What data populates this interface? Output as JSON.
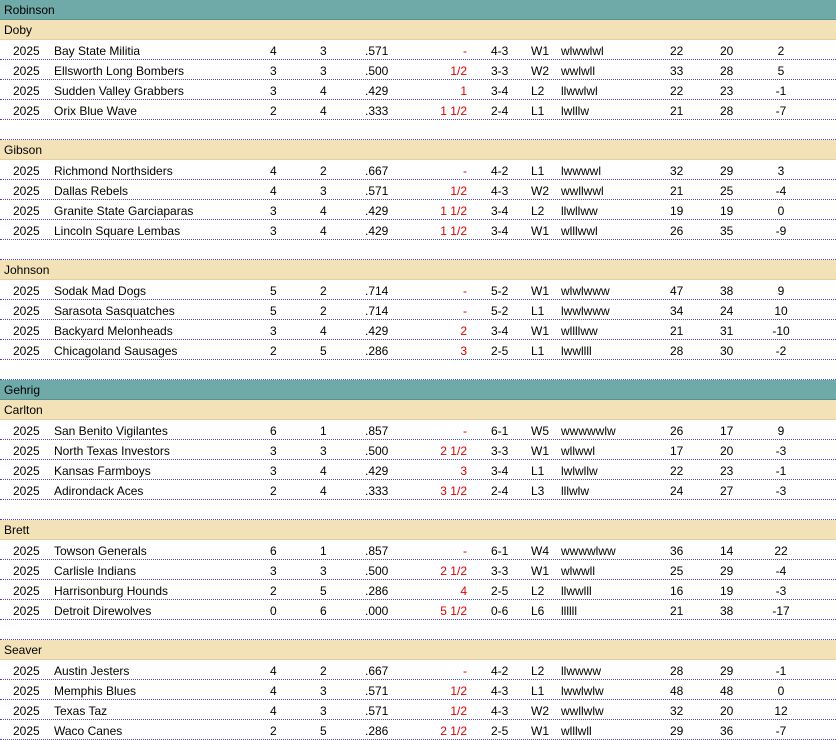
{
  "leagues": [
    {
      "name": "Robinson",
      "divisions": [
        {
          "name": "Doby",
          "teams": [
            {
              "year": "2025",
              "team": "Bay State Militia",
              "w": "4",
              "l": "3",
              "pct": ".571",
              "gb": "-",
              "rec": "4-3",
              "streak": "W1",
              "last": "wlwwlwl",
              "rs": "22",
              "ra": "20",
              "diff": "2"
            },
            {
              "year": "2025",
              "team": "Ellsworth Long Bombers",
              "w": "3",
              "l": "3",
              "pct": ".500",
              "gb": "1/2",
              "rec": "3-3",
              "streak": "W2",
              "last": "wwlwll",
              "rs": "33",
              "ra": "28",
              "diff": "5"
            },
            {
              "year": "2025",
              "team": "Sudden Valley Grabbers",
              "w": "3",
              "l": "4",
              "pct": ".429",
              "gb": "1",
              "rec": "3-4",
              "streak": "L2",
              "last": "llwwlwl",
              "rs": "22",
              "ra": "23",
              "diff": "-1"
            },
            {
              "year": "2025",
              "team": "Orix  Blue Wave",
              "w": "2",
              "l": "4",
              "pct": ".333",
              "gb": "1 1/2",
              "rec": "2-4",
              "streak": "L1",
              "last": "lwlllw",
              "rs": "21",
              "ra": "28",
              "diff": "-7"
            }
          ]
        },
        {
          "name": "Gibson",
          "teams": [
            {
              "year": "2025",
              "team": "Richmond Northsiders",
              "w": "4",
              "l": "2",
              "pct": ".667",
              "gb": "-",
              "rec": "4-2",
              "streak": "L1",
              "last": "lwwwwl",
              "rs": "32",
              "ra": "29",
              "diff": "3"
            },
            {
              "year": "2025",
              "team": "Dallas Rebels",
              "w": "4",
              "l": "3",
              "pct": ".571",
              "gb": "1/2",
              "rec": "4-3",
              "streak": "W2",
              "last": "wwllwwl",
              "rs": "21",
              "ra": "25",
              "diff": "-4"
            },
            {
              "year": "2025",
              "team": "Granite State Garciaparas",
              "w": "3",
              "l": "4",
              "pct": ".429",
              "gb": "1 1/2",
              "rec": "3-4",
              "streak": "L2",
              "last": "llwllww",
              "rs": "19",
              "ra": "19",
              "diff": "0"
            },
            {
              "year": "2025",
              "team": "Lincoln Square Lembas",
              "w": "3",
              "l": "4",
              "pct": ".429",
              "gb": "1 1/2",
              "rec": "3-4",
              "streak": "W1",
              "last": "wlllwwl",
              "rs": "26",
              "ra": "35",
              "diff": "-9"
            }
          ]
        },
        {
          "name": "Johnson",
          "teams": [
            {
              "year": "2025",
              "team": "Sodak Mad Dogs",
              "w": "5",
              "l": "2",
              "pct": ".714",
              "gb": "-",
              "rec": "5-2",
              "streak": "W1",
              "last": "wlwlwww",
              "rs": "47",
              "ra": "38",
              "diff": "9"
            },
            {
              "year": "2025",
              "team": "Sarasota Sasquatches",
              "w": "5",
              "l": "2",
              "pct": ".714",
              "gb": "-",
              "rec": "5-2",
              "streak": "L1",
              "last": "lwwlwww",
              "rs": "34",
              "ra": "24",
              "diff": "10"
            },
            {
              "year": "2025",
              "team": "Backyard Melonheads",
              "w": "3",
              "l": "4",
              "pct": ".429",
              "gb": "2",
              "rec": "3-4",
              "streak": "W1",
              "last": "wllllww",
              "rs": "21",
              "ra": "31",
              "diff": "-10"
            },
            {
              "year": "2025",
              "team": "Chicagoland Sausages",
              "w": "2",
              "l": "5",
              "pct": ".286",
              "gb": "3",
              "rec": "2-5",
              "streak": "L1",
              "last": "lwwllll",
              "rs": "28",
              "ra": "30",
              "diff": "-2"
            }
          ]
        }
      ]
    },
    {
      "name": "Gehrig",
      "divisions": [
        {
          "name": "Carlton",
          "teams": [
            {
              "year": "2025",
              "team": "San Benito Vigilantes",
              "w": "6",
              "l": "1",
              "pct": ".857",
              "gb": "-",
              "rec": "6-1",
              "streak": "W5",
              "last": "wwwwwlw",
              "rs": "26",
              "ra": "17",
              "diff": "9"
            },
            {
              "year": "2025",
              "team": "North Texas Investors",
              "w": "3",
              "l": "3",
              "pct": ".500",
              "gb": "2 1/2",
              "rec": "3-3",
              "streak": "W1",
              "last": "wllwwl",
              "rs": "17",
              "ra": "20",
              "diff": "-3"
            },
            {
              "year": "2025",
              "team": "Kansas Farmboys",
              "w": "3",
              "l": "4",
              "pct": ".429",
              "gb": "3",
              "rec": "3-4",
              "streak": "L1",
              "last": "lwlwllw",
              "rs": "22",
              "ra": "23",
              "diff": "-1"
            },
            {
              "year": "2025",
              "team": "Adirondack Aces",
              "w": "2",
              "l": "4",
              "pct": ".333",
              "gb": "3 1/2",
              "rec": "2-4",
              "streak": "L3",
              "last": "lllwlw",
              "rs": "24",
              "ra": "27",
              "diff": "-3"
            }
          ]
        },
        {
          "name": "Brett",
          "teams": [
            {
              "year": "2025",
              "team": "Towson  Generals",
              "w": "6",
              "l": "1",
              "pct": ".857",
              "gb": "-",
              "rec": "6-1",
              "streak": "W4",
              "last": "wwwwlww",
              "rs": "36",
              "ra": "14",
              "diff": "22"
            },
            {
              "year": "2025",
              "team": "Carlisle Indians",
              "w": "3",
              "l": "3",
              "pct": ".500",
              "gb": "2 1/2",
              "rec": "3-3",
              "streak": "W1",
              "last": "wlwwll",
              "rs": "25",
              "ra": "29",
              "diff": "-4"
            },
            {
              "year": "2025",
              "team": "Harrisonburg Hounds",
              "w": "2",
              "l": "5",
              "pct": ".286",
              "gb": "4",
              "rec": "2-5",
              "streak": "L2",
              "last": "llwwlll",
              "rs": "16",
              "ra": "19",
              "diff": "-3"
            },
            {
              "year": "2025",
              "team": "Detroit Direwolves",
              "w": "0",
              "l": "6",
              "pct": ".000",
              "gb": "5 1/2",
              "rec": "0-6",
              "streak": "L6",
              "last": "llllll",
              "rs": "21",
              "ra": "38",
              "diff": "-17"
            }
          ]
        },
        {
          "name": "Seaver",
          "teams": [
            {
              "year": "2025",
              "team": "Austin Jesters",
              "w": "4",
              "l": "2",
              "pct": ".667",
              "gb": "-",
              "rec": "4-2",
              "streak": "L2",
              "last": "llwwww",
              "rs": "28",
              "ra": "29",
              "diff": "-1"
            },
            {
              "year": "2025",
              "team": "Memphis Blues",
              "w": "4",
              "l": "3",
              "pct": ".571",
              "gb": "1/2",
              "rec": "4-3",
              "streak": "L1",
              "last": "lwwlwlw",
              "rs": "48",
              "ra": "48",
              "diff": "0"
            },
            {
              "year": "2025",
              "team": "Texas Taz",
              "w": "4",
              "l": "3",
              "pct": ".571",
              "gb": "1/2",
              "rec": "4-3",
              "streak": "W2",
              "last": "wwllwlw",
              "rs": "32",
              "ra": "20",
              "diff": "12"
            },
            {
              "year": "2025",
              "team": "Waco Canes",
              "w": "2",
              "l": "5",
              "pct": ".286",
              "gb": "2 1/2",
              "rec": "2-5",
              "streak": "W1",
              "last": "wlllwll",
              "rs": "29",
              "ra": "36",
              "diff": "-7"
            }
          ]
        }
      ]
    }
  ]
}
